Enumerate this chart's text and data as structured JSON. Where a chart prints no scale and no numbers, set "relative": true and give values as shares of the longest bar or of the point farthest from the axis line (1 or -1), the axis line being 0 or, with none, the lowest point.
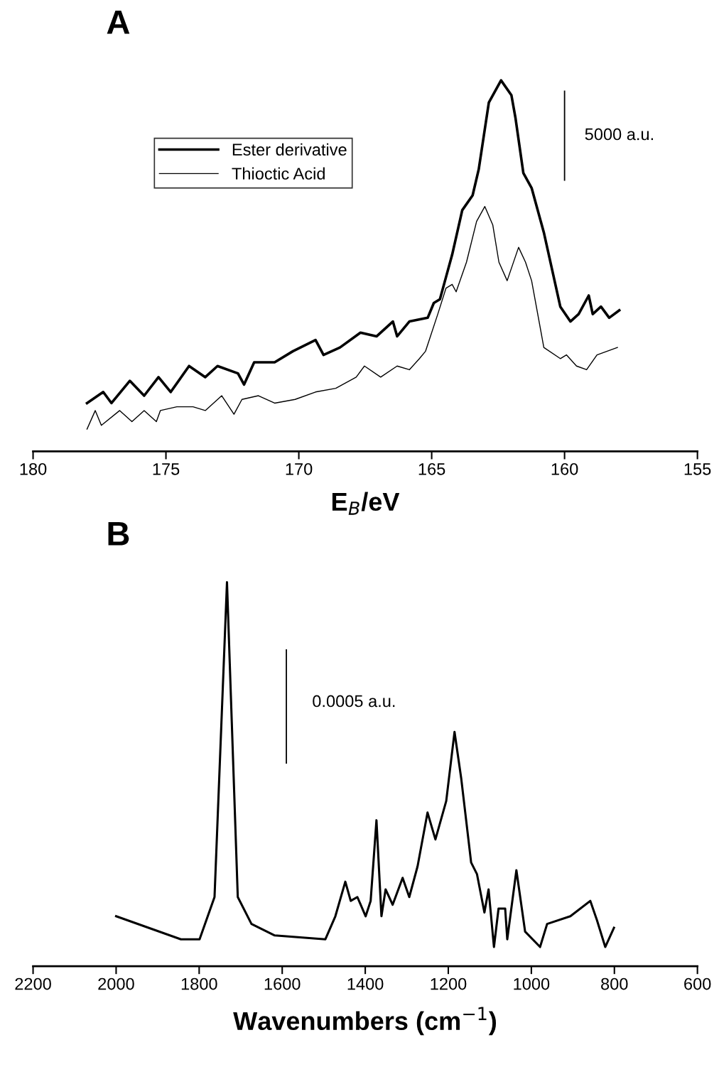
{
  "chart_data": [
    {
      "type": "line",
      "title": "A",
      "xlabel": "E$_{B}$/eV",
      "relative": true,
      "xlim": [
        180,
        155
      ],
      "xticks": [
        180,
        175,
        170,
        165,
        160,
        155
      ],
      "tick_labels": "x",
      "grid": false,
      "legend": "top left",
      "marker": "none",
      "line_style": "solid",
      "ref_lines": [
        {
          "axis": "x",
          "value": 160,
          "label": "5000 a.u."
        }
      ],
      "series": [
        {
          "name": "Ester derivative",
          "color": "#000000",
          "x": [
            177.97,
            177.36,
            177.05,
            176.36,
            175.82,
            175.28,
            174.82,
            174.13,
            173.52,
            173.06,
            172.29,
            172.06,
            171.68,
            170.91,
            170.22,
            169.37,
            169.07,
            168.45,
            167.68,
            167.07,
            166.46,
            166.3,
            165.84,
            165.15,
            164.92,
            164.69,
            164.46,
            164.23,
            163.85,
            163.46,
            163.23,
            162.85,
            162.39,
            162.0,
            161.85,
            161.55,
            161.24,
            160.78,
            160.16,
            159.78,
            159.47,
            159.09,
            158.94,
            158.63,
            158.32,
            157.94
          ],
          "values": [
            0.13,
            0.16,
            0.13,
            0.19,
            0.15,
            0.2,
            0.16,
            0.23,
            0.2,
            0.23,
            0.21,
            0.18,
            0.24,
            0.24,
            0.27,
            0.3,
            0.26,
            0.28,
            0.32,
            0.31,
            0.35,
            0.31,
            0.35,
            0.36,
            0.4,
            0.41,
            0.47,
            0.53,
            0.65,
            0.69,
            0.76,
            0.94,
            1.0,
            0.96,
            0.9,
            0.75,
            0.71,
            0.59,
            0.39,
            0.35,
            0.37,
            0.42,
            0.37,
            0.39,
            0.36,
            0.38
          ]
        },
        {
          "name": "Thioctic Acid",
          "color": "#000000",
          "x": [
            177.97,
            177.66,
            177.43,
            176.74,
            176.28,
            175.82,
            175.36,
            175.21,
            174.59,
            173.98,
            173.52,
            172.9,
            172.44,
            172.14,
            171.52,
            170.91,
            170.14,
            169.37,
            168.61,
            167.84,
            167.53,
            166.92,
            166.3,
            165.84,
            165.46,
            165.23,
            164.77,
            164.46,
            164.23,
            164.08,
            163.69,
            163.31,
            163.0,
            162.7,
            162.47,
            162.16,
            161.73,
            161.47,
            161.24,
            160.78,
            160.16,
            159.93,
            159.55,
            159.17,
            158.78,
            158.01
          ],
          "values": [
            0.06,
            0.11,
            0.07,
            0.11,
            0.08,
            0.11,
            0.08,
            0.11,
            0.12,
            0.12,
            0.11,
            0.15,
            0.1,
            0.14,
            0.15,
            0.13,
            0.14,
            0.16,
            0.17,
            0.2,
            0.23,
            0.2,
            0.23,
            0.22,
            0.25,
            0.27,
            0.37,
            0.44,
            0.45,
            0.43,
            0.51,
            0.62,
            0.66,
            0.61,
            0.51,
            0.46,
            0.55,
            0.51,
            0.46,
            0.28,
            0.25,
            0.26,
            0.23,
            0.22,
            0.26,
            0.28
          ]
        }
      ]
    },
    {
      "type": "line",
      "title": "B",
      "xlabel": "Wavenumbers (cm$^{−1}$)",
      "relative": true,
      "xlim": [
        2200,
        600
      ],
      "xticks": [
        2200,
        2000,
        1800,
        1600,
        1400,
        1200,
        1000,
        800,
        600
      ],
      "tick_labels": "x",
      "grid": false,
      "legend": false,
      "marker": "none",
      "line_style": "solid",
      "ref_lines": [
        {
          "axis": "x",
          "value": 1590,
          "label": "0.0005 a.u."
        }
      ],
      "series": [
        {
          "color": "#000000",
          "x": [
            2000,
            1844,
            1799,
            1763,
            1733,
            1707,
            1674,
            1618,
            1496,
            1472,
            1448,
            1435,
            1419,
            1399,
            1387,
            1373,
            1361,
            1351,
            1334,
            1310,
            1294,
            1274,
            1250,
            1231,
            1205,
            1185,
            1169,
            1145,
            1131,
            1113,
            1103,
            1090,
            1079,
            1063,
            1058,
            1036,
            1015,
            979,
            962,
            906,
            858,
            842,
            822,
            801
          ],
          "values": [
            0.13,
            0.07,
            0.07,
            0.18,
            1.0,
            0.18,
            0.11,
            0.08,
            0.07,
            0.13,
            0.22,
            0.17,
            0.18,
            0.13,
            0.17,
            0.38,
            0.13,
            0.2,
            0.16,
            0.23,
            0.18,
            0.26,
            0.4,
            0.33,
            0.43,
            0.61,
            0.49,
            0.27,
            0.24,
            0.14,
            0.2,
            0.05,
            0.15,
            0.15,
            0.07,
            0.25,
            0.09,
            0.05,
            0.11,
            0.13,
            0.17,
            0.12,
            0.05,
            0.1
          ]
        }
      ]
    }
  ]
}
